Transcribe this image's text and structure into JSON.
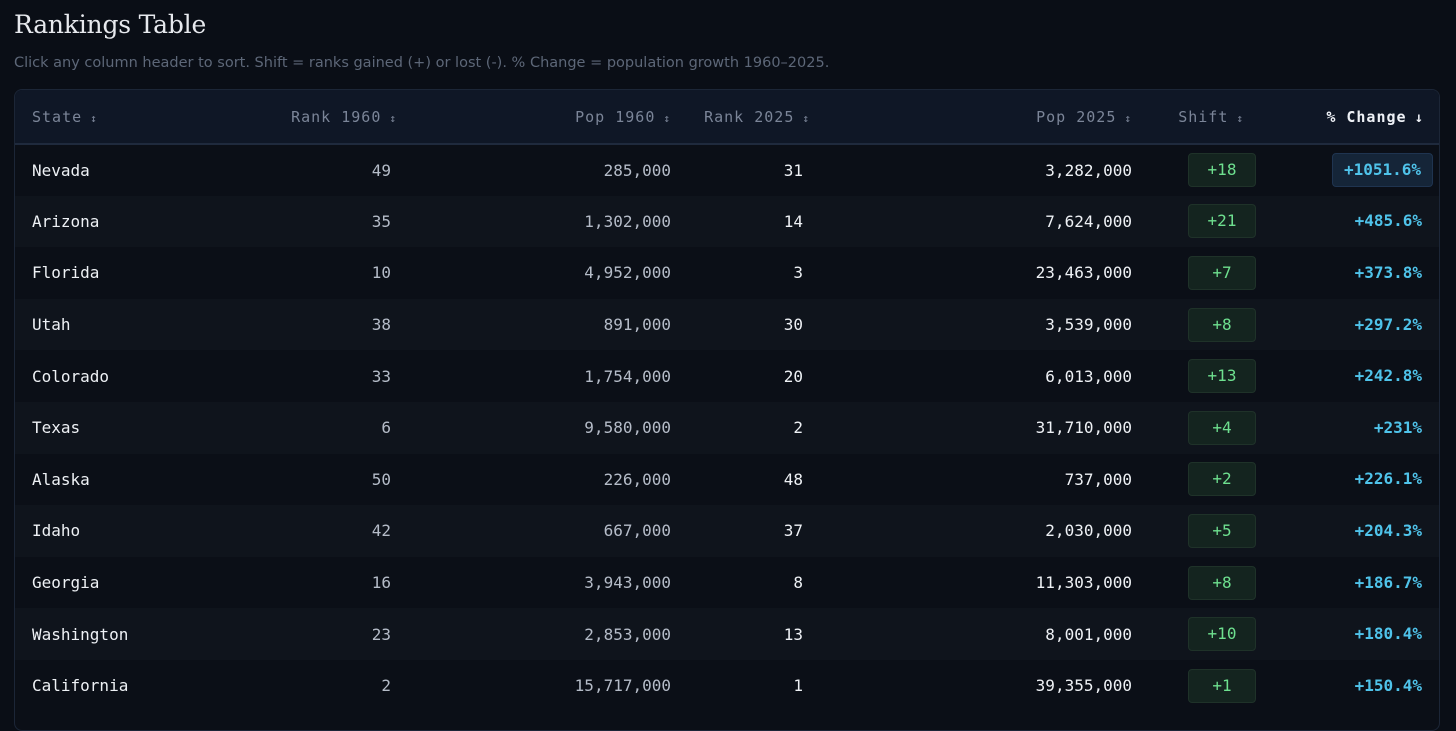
{
  "page": {
    "title": "Rankings Table",
    "subtitle": "Click any column header to sort. Shift = ranks gained (+) or lost (-). % Change = population growth 1960–2025."
  },
  "table": {
    "headers": {
      "state": "State",
      "rank1960": "Rank 1960",
      "pop1960": "Pop 1960",
      "rank2025": "Rank 2025",
      "pop2025": "Pop 2025",
      "shift": "Shift",
      "pct": "% Change"
    },
    "sort_icons": {
      "unsorted": "↕",
      "sorted_desc": "↓"
    },
    "sorted_column": "% Change",
    "rows": [
      {
        "state": "Nevada",
        "rank1960": "49",
        "pop1960": "285,000",
        "rank2025": "31",
        "pop2025": "3,282,000",
        "shift": "+18",
        "pct": "+1051.6%"
      },
      {
        "state": "Arizona",
        "rank1960": "35",
        "pop1960": "1,302,000",
        "rank2025": "14",
        "pop2025": "7,624,000",
        "shift": "+21",
        "pct": "+485.6%"
      },
      {
        "state": "Florida",
        "rank1960": "10",
        "pop1960": "4,952,000",
        "rank2025": "3",
        "pop2025": "23,463,000",
        "shift": "+7",
        "pct": "+373.8%"
      },
      {
        "state": "Utah",
        "rank1960": "38",
        "pop1960": "891,000",
        "rank2025": "30",
        "pop2025": "3,539,000",
        "shift": "+8",
        "pct": "+297.2%"
      },
      {
        "state": "Colorado",
        "rank1960": "33",
        "pop1960": "1,754,000",
        "rank2025": "20",
        "pop2025": "6,013,000",
        "shift": "+13",
        "pct": "+242.8%"
      },
      {
        "state": "Texas",
        "rank1960": "6",
        "pop1960": "9,580,000",
        "rank2025": "2",
        "pop2025": "31,710,000",
        "shift": "+4",
        "pct": "+231%"
      },
      {
        "state": "Alaska",
        "rank1960": "50",
        "pop1960": "226,000",
        "rank2025": "48",
        "pop2025": "737,000",
        "shift": "+2",
        "pct": "+226.1%"
      },
      {
        "state": "Idaho",
        "rank1960": "42",
        "pop1960": "667,000",
        "rank2025": "37",
        "pop2025": "2,030,000",
        "shift": "+5",
        "pct": "+204.3%"
      },
      {
        "state": "Georgia",
        "rank1960": "16",
        "pop1960": "3,943,000",
        "rank2025": "8",
        "pop2025": "11,303,000",
        "shift": "+8",
        "pct": "+186.7%"
      },
      {
        "state": "Washington",
        "rank1960": "23",
        "pop1960": "2,853,000",
        "rank2025": "13",
        "pop2025": "8,001,000",
        "shift": "+10",
        "pct": "+180.4%"
      },
      {
        "state": "California",
        "rank1960": "2",
        "pop1960": "15,717,000",
        "rank2025": "1",
        "pop2025": "39,355,000",
        "shift": "+1",
        "pct": "+150.4%"
      }
    ]
  },
  "colors": {
    "background": "#0a0e16",
    "header_background": "#0f1726",
    "shift_positive": "#6ee08f",
    "pct_change": "#4fc3ea"
  }
}
